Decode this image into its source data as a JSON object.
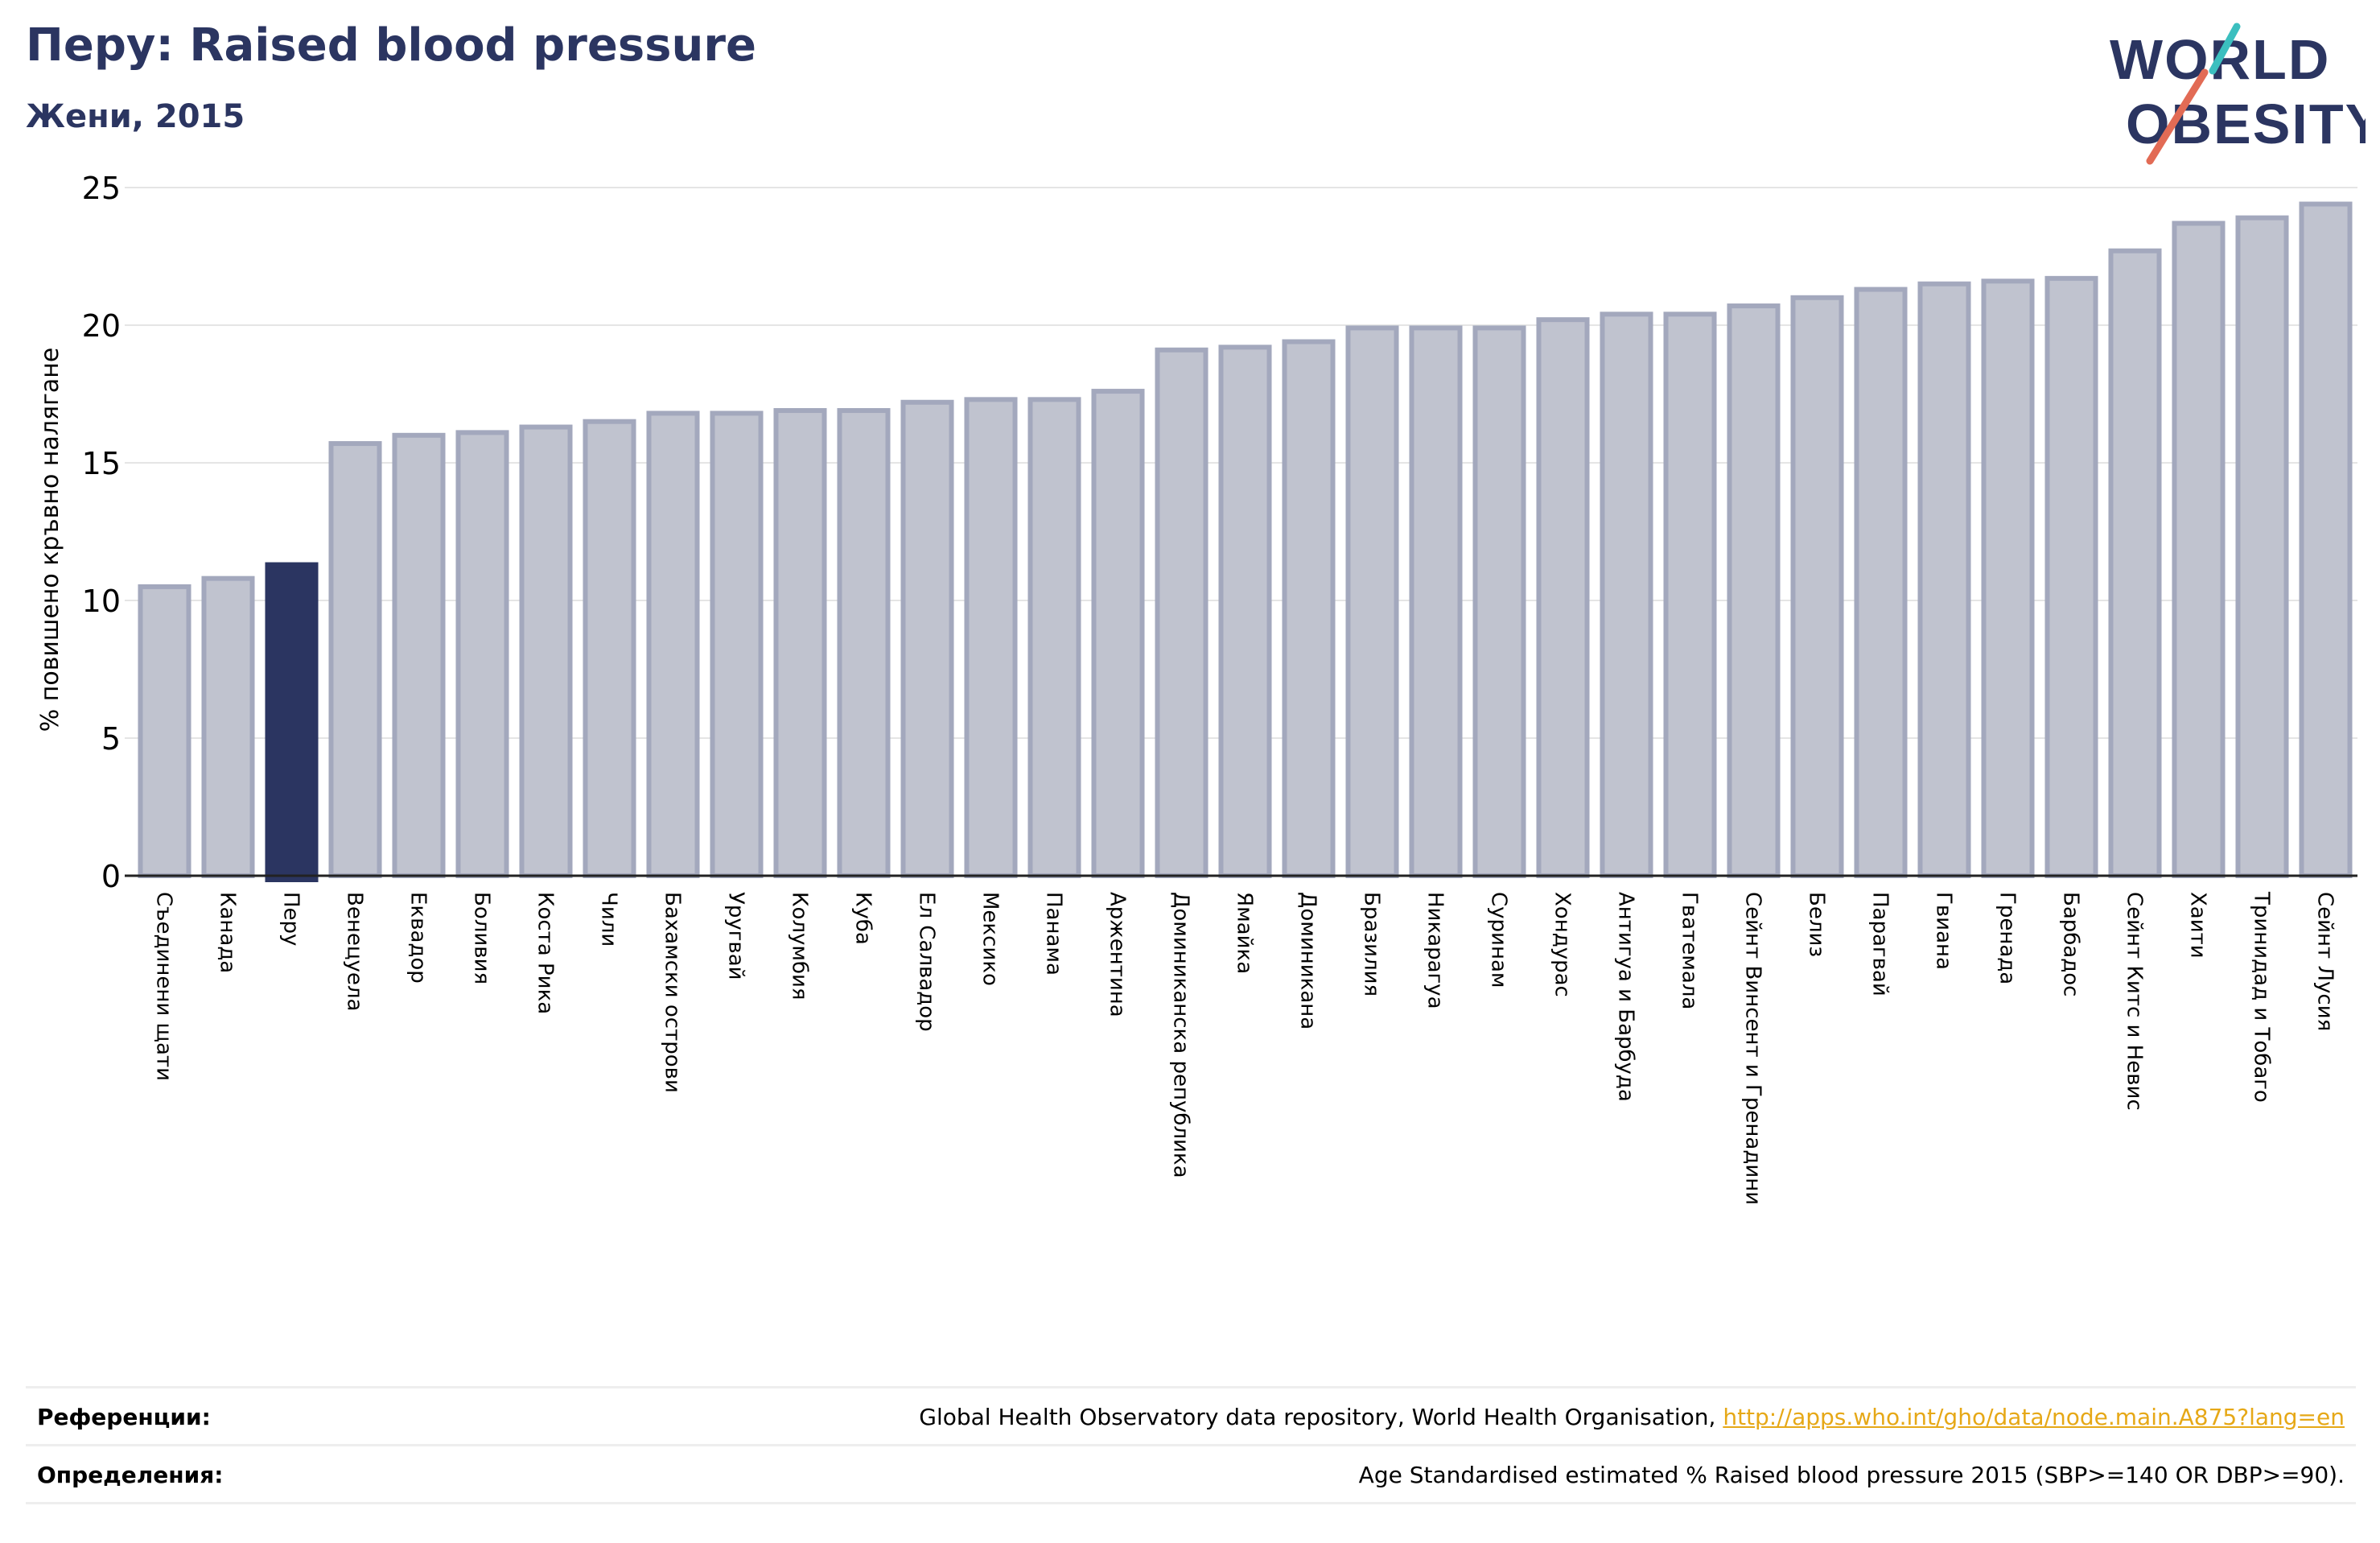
{
  "header": {
    "title": "Перу: Raised blood pressure",
    "subtitle": "Жени, 2015"
  },
  "logo": {
    "line1": "WORLD",
    "line2": "OBESITY"
  },
  "colors": {
    "bar": "#c0c3cf",
    "bar_stroke": "#a3a8bd",
    "highlight": "#2b3561",
    "grid": "#e5e5e5",
    "title": "#2b3561",
    "link": "#e6a817"
  },
  "chart_data": {
    "type": "bar",
    "title": "Перу: Raised blood pressure",
    "subtitle": "Жени, 2015",
    "xlabel": "",
    "ylabel": "% повишено кръвно налягане",
    "ylim": [
      0,
      25
    ],
    "yticks": [
      0,
      5,
      10,
      15,
      20,
      25
    ],
    "grid": true,
    "highlight_category": "Перу",
    "categories": [
      "Съединени щати",
      "Канада",
      "Перу",
      "Венецуела",
      "Еквадор",
      "Боливия",
      "Коста Рика",
      "Чили",
      "Бахамски острови",
      "Уругвай",
      "Колумбия",
      "Куба",
      "Ел Салвадор",
      "Мексико",
      "Панама",
      "Аржентина",
      "Доминиканска република",
      "Ямайка",
      "Доминикана",
      "Бразилия",
      "Никарагуа",
      "Суринам",
      "Хондурас",
      "Антигуа и Барбуда",
      "Гватемала",
      "Сейнт Винсент и Гренадини",
      "Белиз",
      "Парагвай",
      "Гвиана",
      "Гренада",
      "Барбадос",
      "Сейнт Китс и Невис",
      "Хаити",
      "Тринидад и Тобаго",
      "Сейнт Лусия"
    ],
    "values": [
      10.5,
      10.8,
      11.3,
      15.7,
      16.0,
      16.1,
      16.3,
      16.5,
      16.8,
      16.8,
      16.9,
      16.9,
      17.2,
      17.3,
      17.3,
      17.6,
      19.1,
      19.2,
      19.4,
      19.9,
      19.9,
      19.9,
      20.2,
      20.4,
      20.4,
      20.7,
      21.0,
      21.3,
      21.5,
      21.6,
      21.7,
      22.7,
      23.7,
      23.9,
      24.4
    ]
  },
  "footer": {
    "references_label": "Референции:",
    "references_text": "Global Health Observatory data repository, World Health Organisation, ",
    "references_link": "http://apps.who.int/gho/data/node.main.A875?lang=en",
    "definitions_label": "Определения:",
    "definitions_text": "Age Standardised estimated % Raised blood pressure 2015 (SBP>=140 OR DBP>=90)."
  }
}
